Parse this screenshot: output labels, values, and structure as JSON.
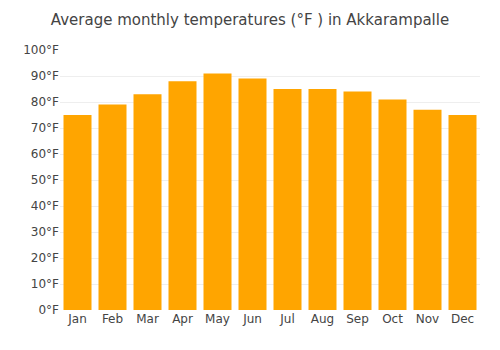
{
  "chart_data": {
    "type": "bar",
    "title": "Average monthly temperatures (°F ) in Akkarampalle",
    "categories": [
      "Jan",
      "Feb",
      "Mar",
      "Apr",
      "May",
      "Jun",
      "Jul",
      "Aug",
      "Sep",
      "Oct",
      "Nov",
      "Dec"
    ],
    "values": [
      75,
      79,
      83,
      88,
      91,
      89,
      85,
      85,
      84,
      81,
      77,
      75
    ],
    "color": "#FFA500",
    "ylim": [
      0,
      100
    ],
    "yticks": [
      {
        "value": 0,
        "label": "0°F"
      },
      {
        "value": 10,
        "label": "10°F"
      },
      {
        "value": 20,
        "label": "20°F"
      },
      {
        "value": 30,
        "label": "30°F"
      },
      {
        "value": 40,
        "label": "40°F"
      },
      {
        "value": 50,
        "label": "50°F"
      },
      {
        "value": 60,
        "label": "60°F"
      },
      {
        "value": 70,
        "label": "70°F"
      },
      {
        "value": 80,
        "label": "80°F"
      },
      {
        "value": 90,
        "label": "90°F"
      },
      {
        "value": 100,
        "label": "100°F"
      }
    ],
    "grid": true
  }
}
